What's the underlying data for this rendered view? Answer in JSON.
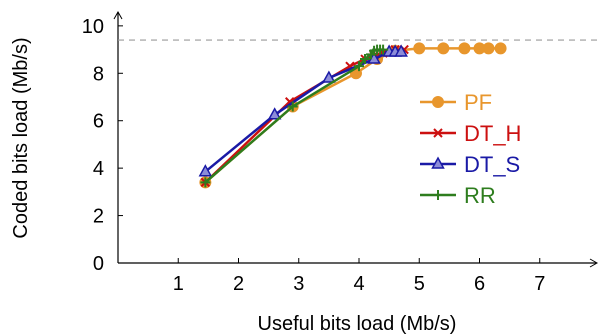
{
  "chart_data": {
    "type": "line",
    "xlabel": "Useful bits load (Mb/s)",
    "ylabel": "Coded bits load (Mb/s)",
    "xlim": [
      0,
      8
    ],
    "ylim": [
      0,
      10.5
    ],
    "xticks": [
      "1",
      "2",
      "3",
      "4",
      "5",
      "6",
      "7"
    ],
    "yticks": [
      "0",
      "2",
      "4",
      "6",
      "8",
      "10"
    ],
    "grid": false,
    "legend_position": "center-right",
    "reference_line": {
      "y": 9.4,
      "style": "dashed",
      "color": "#9a9a9a"
    },
    "series": [
      {
        "name": "PF",
        "color": "#e8962c",
        "marker": "circle",
        "x": [
          1.45,
          2.9,
          3.95,
          4.3,
          4.6,
          5.0,
          5.4,
          5.75,
          6.0,
          6.15,
          6.35
        ],
        "y": [
          3.4,
          6.6,
          8.0,
          8.6,
          8.95,
          9.05,
          9.05,
          9.05,
          9.05,
          9.05,
          9.05
        ]
      },
      {
        "name": "DT_H",
        "color": "#cc1010",
        "marker": "x",
        "x": [
          1.45,
          2.85,
          3.85,
          4.1,
          4.25,
          4.4,
          4.6,
          4.75
        ],
        "y": [
          3.4,
          6.8,
          8.3,
          8.6,
          8.75,
          8.85,
          9.0,
          9.0
        ]
      },
      {
        "name": "DT_S",
        "color": "#1a1aa6",
        "marker": "triangle",
        "x": [
          1.45,
          2.6,
          3.5,
          4.25,
          4.5,
          4.6,
          4.7
        ],
        "y": [
          3.85,
          6.25,
          7.8,
          8.6,
          8.9,
          8.9,
          8.9
        ]
      },
      {
        "name": "RR",
        "color": "#2e7d1e",
        "marker": "plus",
        "x": [
          1.45,
          2.9,
          4.0,
          4.1,
          4.2,
          4.25,
          4.3,
          4.35,
          4.4
        ],
        "y": [
          3.4,
          6.6,
          8.3,
          8.6,
          8.8,
          8.95,
          9.0,
          9.0,
          9.0
        ]
      }
    ]
  }
}
